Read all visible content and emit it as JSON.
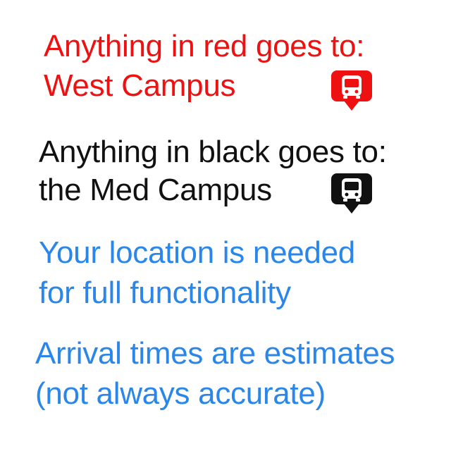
{
  "colors": {
    "red": "#ee1111",
    "black": "#111111",
    "blue": "#2a86e8"
  },
  "west": {
    "line1": "Anything in red goes to:",
    "line2": "West Campus",
    "icon": "bus-marker-icon"
  },
  "med": {
    "line1": "Anything in black goes to:",
    "line2": "the Med Campus",
    "icon": "bus-marker-icon"
  },
  "location": {
    "line1": "Your location is needed",
    "line2": "for full functionality"
  },
  "arrival": {
    "line1": "Arrival times are estimates",
    "line2": "(not always accurate)"
  }
}
